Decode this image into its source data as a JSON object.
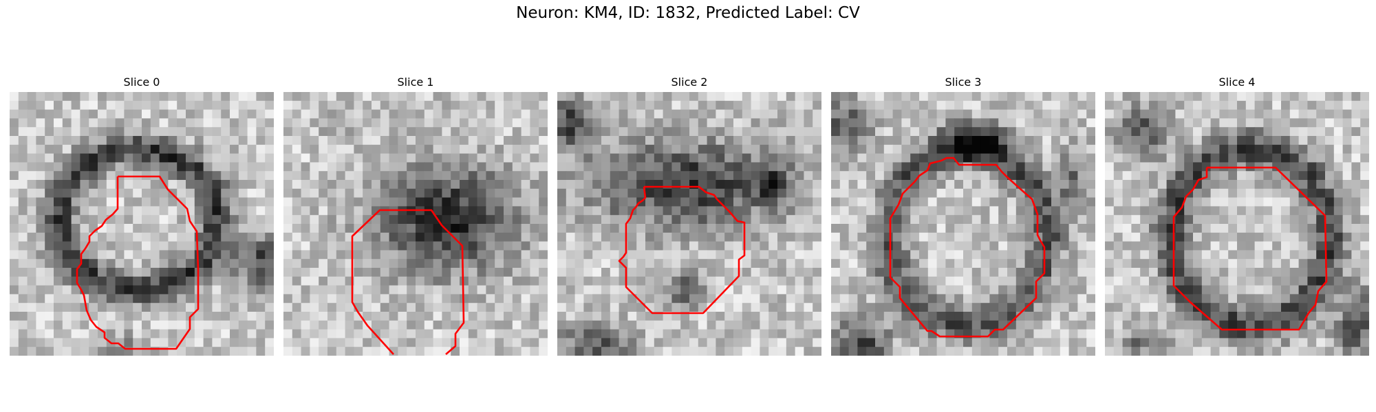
{
  "figure": {
    "suptitle": "Neuron: KM4, ID: 1832, Predicted Label: CV",
    "contour_color": "#ff0000"
  },
  "panels": [
    {
      "title": "Slice 0"
    },
    {
      "title": "Slice 1"
    },
    {
      "title": "Slice 2"
    },
    {
      "title": "Slice 3"
    },
    {
      "title": "Slice 4"
    }
  ]
}
